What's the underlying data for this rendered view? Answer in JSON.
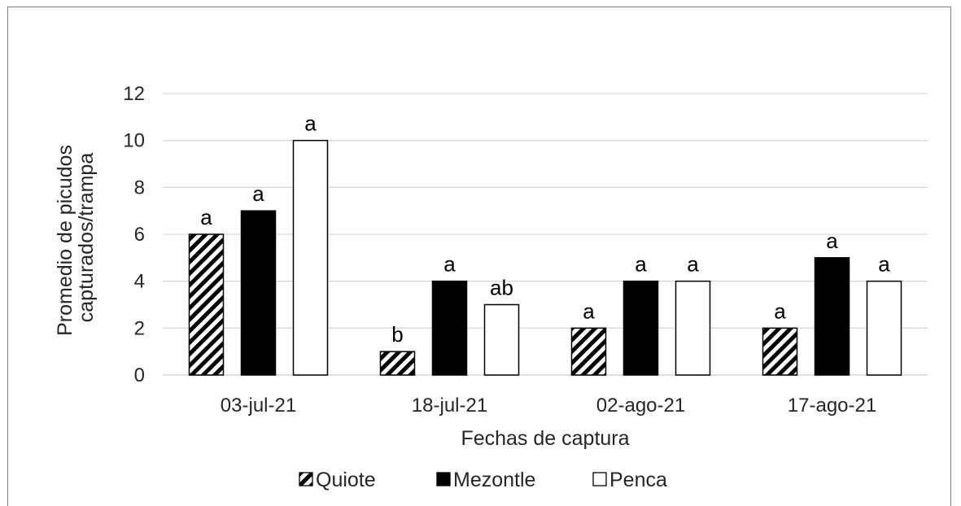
{
  "chart_data": {
    "type": "bar",
    "title": "",
    "xlabel": "Fechas de captura",
    "ylabel_lines": [
      "Promedio de picudos",
      "capturados/trampa"
    ],
    "ylim": [
      0,
      12
    ],
    "yticks": [
      0,
      2,
      4,
      6,
      8,
      10,
      12
    ],
    "grid": true,
    "legend_position": "bottom",
    "categories": [
      "03-jul-21",
      "18-jul-21",
      "02-ago-21",
      "17-ago-21"
    ],
    "series": [
      {
        "name": "Quiote",
        "values": [
          6,
          1,
          2,
          2
        ],
        "labels": [
          "a",
          "b",
          "a",
          "a"
        ],
        "fill": "hatched",
        "color": "#000000"
      },
      {
        "name": "Mezontle",
        "values": [
          7,
          4,
          4,
          5
        ],
        "labels": [
          "a",
          "a",
          "a",
          "a"
        ],
        "fill": "solid",
        "color": "#000000"
      },
      {
        "name": "Penca",
        "values": [
          10,
          3,
          4,
          4
        ],
        "labels": [
          "a",
          "ab",
          "a",
          "a"
        ],
        "fill": "solid",
        "color": "#ffffff"
      }
    ],
    "colors": {
      "grid": "#d9d9d9",
      "axis": "#d9d9d9",
      "bar_border": "#000000",
      "text": "#262626"
    }
  }
}
